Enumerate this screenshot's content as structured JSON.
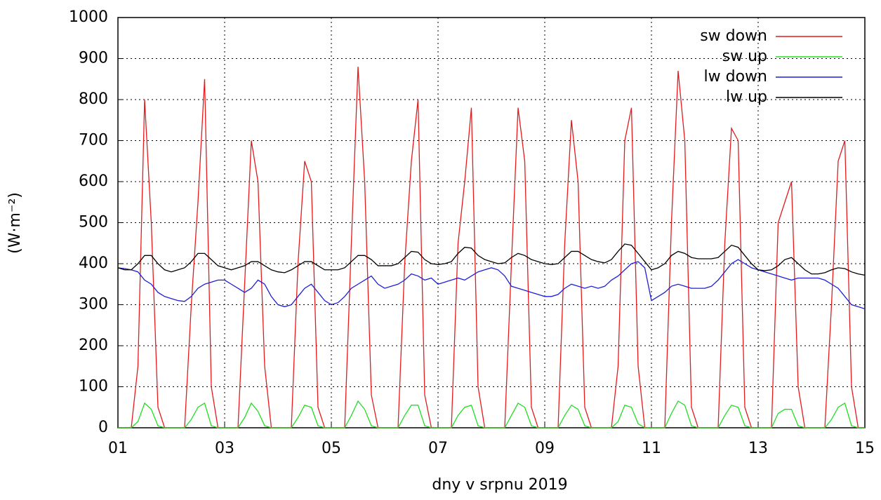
{
  "chart_data": {
    "type": "line",
    "x_label": "dny v srpnu 2019",
    "y_label": "(W·m⁻²)",
    "xlim": [
      1,
      15
    ],
    "xticks": [
      {
        "value": 1,
        "label": "01"
      },
      {
        "value": 3,
        "label": "03"
      },
      {
        "value": 5,
        "label": "05"
      },
      {
        "value": 7,
        "label": "07"
      },
      {
        "value": 9,
        "label": "09"
      },
      {
        "value": 11,
        "label": "11"
      },
      {
        "value": 13,
        "label": "13"
      },
      {
        "value": 15,
        "label": "15"
      }
    ],
    "ylim": [
      0,
      1000
    ],
    "yticks": [
      0,
      100,
      200,
      300,
      400,
      500,
      600,
      700,
      800,
      900,
      1000
    ],
    "grid": true,
    "legend": "top-right",
    "x": [
      1,
      1.125,
      1.25,
      1.375,
      1.5,
      1.625,
      1.75,
      1.875,
      2,
      2.125,
      2.25,
      2.375,
      2.5,
      2.625,
      2.75,
      2.875,
      3,
      3.125,
      3.25,
      3.375,
      3.5,
      3.625,
      3.75,
      3.875,
      4,
      4.125,
      4.25,
      4.375,
      4.5,
      4.625,
      4.75,
      4.875,
      5,
      5.125,
      5.25,
      5.375,
      5.5,
      5.625,
      5.75,
      5.875,
      6,
      6.125,
      6.25,
      6.375,
      6.5,
      6.625,
      6.75,
      6.875,
      7,
      7.125,
      7.25,
      7.375,
      7.5,
      7.625,
      7.75,
      7.875,
      8,
      8.125,
      8.25,
      8.375,
      8.5,
      8.625,
      8.75,
      8.875,
      9,
      9.125,
      9.25,
      9.375,
      9.5,
      9.625,
      9.75,
      9.875,
      10,
      10.125,
      10.25,
      10.375,
      10.5,
      10.625,
      10.75,
      10.875,
      11,
      11.125,
      11.25,
      11.375,
      11.5,
      11.625,
      11.75,
      11.875,
      12,
      12.125,
      12.25,
      12.375,
      12.5,
      12.625,
      12.75,
      12.875,
      13,
      13.125,
      13.25,
      13.375,
      13.5,
      13.625,
      13.75,
      13.875,
      14,
      14.125,
      14.25,
      14.375,
      14.5,
      14.625,
      14.75,
      14.875,
      15
    ],
    "series": [
      {
        "name": "sw down",
        "color": "#e41a1c",
        "values": [
          0,
          0,
          0,
          150,
          800,
          500,
          50,
          0,
          0,
          0,
          0,
          300,
          550,
          850,
          100,
          0,
          0,
          0,
          0,
          350,
          700,
          600,
          150,
          0,
          0,
          0,
          0,
          400,
          650,
          600,
          50,
          0,
          0,
          0,
          0,
          450,
          880,
          600,
          80,
          0,
          0,
          0,
          0,
          400,
          650,
          800,
          80,
          0,
          0,
          0,
          0,
          450,
          600,
          780,
          100,
          0,
          0,
          0,
          0,
          400,
          780,
          650,
          50,
          0,
          0,
          0,
          0,
          450,
          750,
          600,
          50,
          0,
          0,
          0,
          0,
          150,
          700,
          780,
          150,
          0,
          0,
          0,
          0,
          500,
          870,
          700,
          50,
          0,
          0,
          0,
          0,
          450,
          730,
          700,
          50,
          0,
          0,
          0,
          0,
          500,
          550,
          600,
          100,
          0,
          0,
          0,
          0,
          300,
          650,
          700,
          100,
          0,
          0
        ]
      },
      {
        "name": "sw up",
        "color": "#22dd22",
        "values": [
          0,
          0,
          0,
          15,
          60,
          45,
          5,
          0,
          0,
          0,
          0,
          20,
          50,
          60,
          5,
          0,
          0,
          0,
          0,
          25,
          60,
          40,
          5,
          0,
          0,
          0,
          0,
          25,
          55,
          50,
          5,
          0,
          0,
          0,
          0,
          30,
          65,
          45,
          5,
          0,
          0,
          0,
          0,
          30,
          55,
          55,
          5,
          0,
          0,
          0,
          0,
          30,
          50,
          55,
          5,
          0,
          0,
          0,
          0,
          30,
          60,
          50,
          5,
          0,
          0,
          0,
          0,
          30,
          55,
          45,
          5,
          0,
          0,
          0,
          0,
          15,
          55,
          50,
          10,
          0,
          0,
          0,
          0,
          35,
          65,
          55,
          5,
          0,
          0,
          0,
          0,
          30,
          55,
          50,
          5,
          0,
          0,
          0,
          0,
          35,
          45,
          45,
          5,
          0,
          0,
          0,
          0,
          20,
          50,
          60,
          5,
          0,
          0
        ]
      },
      {
        "name": "lw down",
        "color": "#1f1fd8",
        "values": [
          390,
          388,
          385,
          380,
          360,
          350,
          330,
          320,
          315,
          310,
          308,
          320,
          340,
          350,
          355,
          360,
          360,
          350,
          340,
          330,
          340,
          360,
          350,
          320,
          300,
          295,
          300,
          320,
          340,
          350,
          330,
          310,
          300,
          305,
          320,
          340,
          350,
          360,
          370,
          350,
          340,
          345,
          350,
          360,
          375,
          370,
          360,
          365,
          350,
          355,
          360,
          365,
          360,
          370,
          380,
          385,
          390,
          385,
          370,
          345,
          340,
          335,
          330,
          325,
          320,
          320,
          325,
          340,
          350,
          345,
          340,
          345,
          340,
          345,
          360,
          370,
          385,
          400,
          405,
          390,
          310,
          320,
          330,
          345,
          350,
          345,
          340,
          340,
          340,
          345,
          360,
          380,
          400,
          410,
          400,
          390,
          385,
          380,
          375,
          370,
          365,
          360,
          365,
          365,
          365,
          365,
          360,
          350,
          340,
          320,
          300,
          295,
          290
        ]
      },
      {
        "name": "lw up",
        "color": "#000000",
        "values": [
          390,
          385,
          385,
          400,
          420,
          420,
          400,
          385,
          380,
          385,
          390,
          405,
          425,
          425,
          410,
          395,
          390,
          385,
          390,
          395,
          405,
          405,
          395,
          385,
          380,
          378,
          385,
          395,
          405,
          405,
          395,
          385,
          385,
          385,
          390,
          405,
          420,
          420,
          410,
          395,
          395,
          395,
          400,
          415,
          430,
          428,
          410,
          400,
          398,
          400,
          405,
          425,
          440,
          438,
          420,
          410,
          405,
          400,
          402,
          415,
          425,
          420,
          410,
          405,
          400,
          398,
          400,
          415,
          430,
          430,
          420,
          410,
          405,
          402,
          410,
          430,
          448,
          445,
          425,
          405,
          385,
          390,
          400,
          420,
          430,
          425,
          415,
          412,
          412,
          412,
          415,
          430,
          445,
          440,
          420,
          400,
          385,
          383,
          385,
          395,
          410,
          415,
          400,
          385,
          375,
          375,
          378,
          385,
          390,
          388,
          380,
          375,
          372
        ]
      }
    ]
  }
}
